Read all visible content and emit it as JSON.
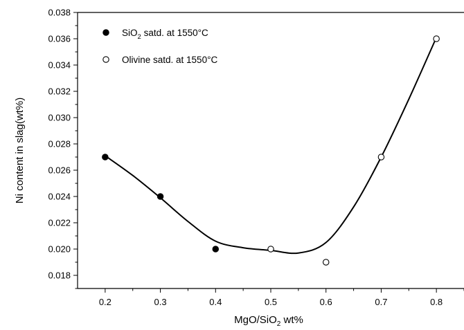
{
  "chart_data": {
    "type": "scatter",
    "title": "",
    "xlabel": "MgO/SiO",
    "xlabel_sub": "2",
    "xlabel_suffix": " wt%",
    "ylabel": "Ni content in slag(wt%)",
    "xlim": [
      0.15,
      0.85
    ],
    "ylim": [
      0.017,
      0.038
    ],
    "x_ticks": [
      "0.2",
      "0.3",
      "0.4",
      "0.5",
      "0.6",
      "0.7",
      "0.8"
    ],
    "y_ticks": [
      "0.018",
      "0.020",
      "0.022",
      "0.024",
      "0.026",
      "0.028",
      "0.030",
      "0.032",
      "0.034",
      "0.036",
      "0.038"
    ],
    "grid": false,
    "legend_position": "top-left",
    "series": [
      {
        "name": "SiO2 satd. at 1550°C",
        "legend_prefix": "SiO",
        "legend_sub": "2",
        "legend_suffix": " satd. at 1550°C",
        "marker": "filled-circle",
        "x": [
          0.2,
          0.3,
          0.4
        ],
        "y": [
          0.027,
          0.024,
          0.02
        ]
      },
      {
        "name": "Olivine satd. at 1550°C",
        "legend_prefix": "Olivine satd. at 1550°C",
        "legend_sub": "",
        "legend_suffix": "",
        "marker": "open-circle",
        "x": [
          0.5,
          0.6,
          0.7,
          0.8
        ],
        "y": [
          0.02,
          0.019,
          0.027,
          0.036
        ]
      }
    ],
    "fit_curve": {
      "x": [
        0.2,
        0.25,
        0.3,
        0.35,
        0.4,
        0.45,
        0.5,
        0.55,
        0.6,
        0.65,
        0.7,
        0.75,
        0.8
      ],
      "y": [
        0.0271,
        0.0256,
        0.0239,
        0.0221,
        0.0206,
        0.0201,
        0.0199,
        0.0197,
        0.0205,
        0.0232,
        0.027,
        0.0314,
        0.0361
      ]
    }
  }
}
